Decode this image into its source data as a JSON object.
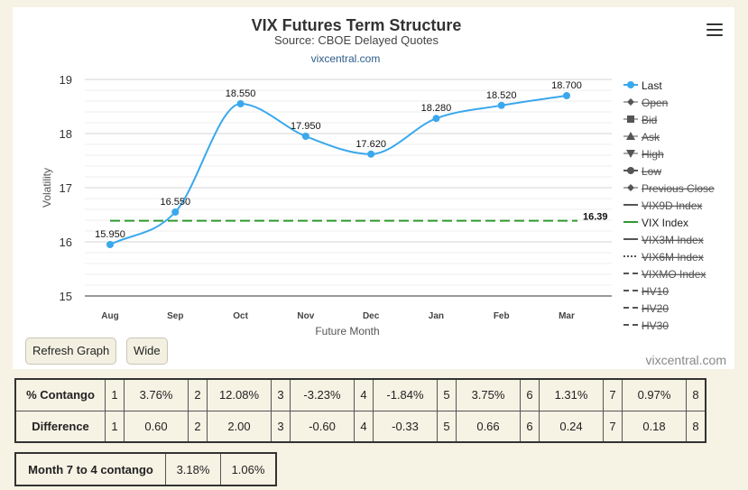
{
  "title": "VIX Futures Term Structure",
  "subtitle": "Source: CBOE Delayed Quotes",
  "source_link": "vixcentral.com",
  "credit": "vixcentral.com",
  "buttons": {
    "refresh": "Refresh Graph",
    "wide": "Wide"
  },
  "chart_data": {
    "type": "line",
    "title": "VIX Futures Term Structure",
    "subtitle": "Source: CBOE Delayed Quotes",
    "xlabel": "Future Month",
    "ylabel": "Volatility",
    "ylim": [
      15,
      19
    ],
    "yticks": [
      15,
      16,
      17,
      18,
      19
    ],
    "categories": [
      "Aug",
      "Sep",
      "Oct",
      "Nov",
      "Dec",
      "Jan",
      "Feb",
      "Mar"
    ],
    "series": [
      {
        "name": "Last",
        "values": [
          15.95,
          16.55,
          18.55,
          17.95,
          17.62,
          18.28,
          18.52,
          18.7
        ],
        "labels": [
          "15.950",
          "16.550",
          "18.550",
          "17.950",
          "17.620",
          "18.280",
          "18.520",
          "18.700"
        ],
        "color": "#3aa8ec"
      },
      {
        "name": "VIX Index",
        "value": 16.39,
        "label": "16.39",
        "color": "#2e9a2e"
      }
    ],
    "legend": {
      "position": "right",
      "items": [
        {
          "name": "Last",
          "marker": "circle",
          "active": true
        },
        {
          "name": "Open",
          "marker": "diamond",
          "active": false
        },
        {
          "name": "Bid",
          "marker": "square",
          "active": false
        },
        {
          "name": "Ask",
          "marker": "triangle",
          "active": false
        },
        {
          "name": "High",
          "marker": "triangle-down",
          "active": false
        },
        {
          "name": "Low",
          "marker": "circle",
          "active": false
        },
        {
          "name": "Previous Close",
          "marker": "diamond",
          "active": false
        },
        {
          "name": "VIX9D Index",
          "marker": "solid",
          "active": false
        },
        {
          "name": "VIX Index",
          "marker": "solid-green",
          "active": true
        },
        {
          "name": "VIX3M Index",
          "marker": "solid",
          "active": false
        },
        {
          "name": "VIX6M Index",
          "marker": "dotted",
          "active": false
        },
        {
          "name": "VIXMO Index",
          "marker": "dashed",
          "active": false
        },
        {
          "name": "HV10",
          "marker": "dashed",
          "active": false
        },
        {
          "name": "HV20",
          "marker": "dashed",
          "active": false
        },
        {
          "name": "HV30",
          "marker": "dashed",
          "active": false
        }
      ]
    },
    "grid": true
  },
  "contango": {
    "label": "% Contango",
    "cells": [
      {
        "n": "1",
        "v": "3.76%"
      },
      {
        "n": "2",
        "v": "12.08%"
      },
      {
        "n": "3",
        "v": "-3.23%"
      },
      {
        "n": "4",
        "v": "-1.84%"
      },
      {
        "n": "5",
        "v": "3.75%"
      },
      {
        "n": "6",
        "v": "1.31%"
      },
      {
        "n": "7",
        "v": "0.97%"
      },
      {
        "n": "8",
        "v": ""
      }
    ]
  },
  "difference": {
    "label": "Difference",
    "cells": [
      {
        "n": "1",
        "v": "0.60"
      },
      {
        "n": "2",
        "v": "2.00"
      },
      {
        "n": "3",
        "v": "-0.60"
      },
      {
        "n": "4",
        "v": "-0.33"
      },
      {
        "n": "5",
        "v": "0.66"
      },
      {
        "n": "6",
        "v": "0.24"
      },
      {
        "n": "7",
        "v": "0.18"
      },
      {
        "n": "8",
        "v": ""
      }
    ]
  },
  "month7to4": {
    "label": "Month 7 to 4 contango",
    "values": [
      "3.18%",
      "1.06%"
    ]
  }
}
